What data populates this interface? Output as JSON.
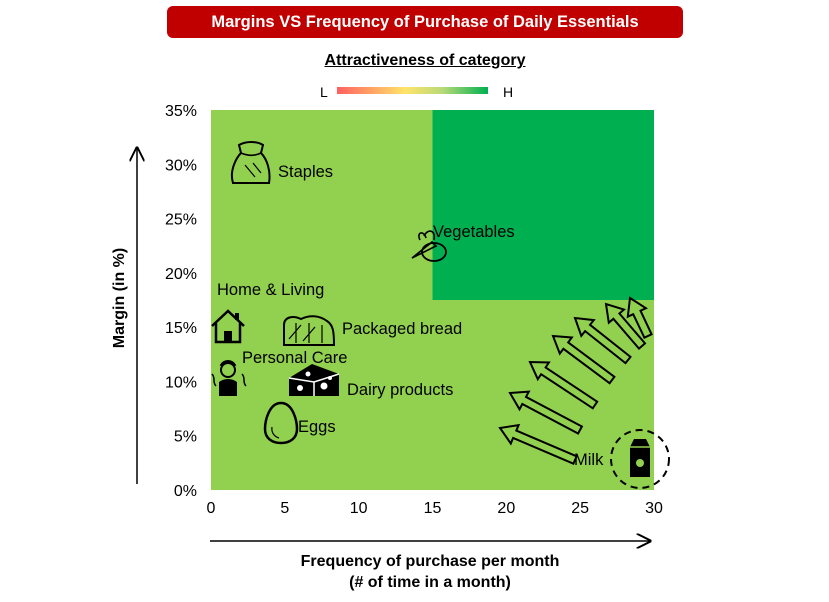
{
  "title": "Margins VS Frequency of Purchase of Daily Essentials",
  "legend": {
    "title": "Attractiveness of category",
    "low": "L",
    "high": "H",
    "colors": {
      "low": "#ff6060",
      "mid": "#ffe46a",
      "high": "#00b050"
    }
  },
  "colors": {
    "background_region": "#92d050",
    "attractive_region": "#00b050",
    "title_bg": "#c00000"
  },
  "icons": [
    "sack-icon",
    "vegetables-icon",
    "house-icon",
    "bread-icon",
    "person-icon",
    "cheese-icon",
    "egg-icon",
    "milk-carton-icon",
    "arrow-icon"
  ],
  "xlabel_line1": "Frequency of purchase per month",
  "xlabel_line2": "(# of time in a month)",
  "ylabel": "Margin (in %)",
  "chart_data": {
    "type": "scatter",
    "xlim": [
      0,
      30
    ],
    "ylim": [
      0,
      35
    ],
    "x_ticks": [
      0,
      5,
      10,
      15,
      20,
      25,
      30
    ],
    "x_tick_labels": [
      "0",
      "5",
      "10",
      "15",
      "20",
      "25",
      "30"
    ],
    "y_ticks": [
      0,
      5,
      10,
      15,
      20,
      25,
      30,
      35
    ],
    "y_tick_labels": [
      "0%",
      "5%",
      "10%",
      "15%",
      "20%",
      "25%",
      "30%",
      "35%"
    ],
    "highlight_region": {
      "x": [
        15,
        30
      ],
      "y": [
        17.5,
        35
      ]
    },
    "points": [
      {
        "label": "Staples",
        "x": 2,
        "y": 30
      },
      {
        "label": "Vegetables",
        "x": 14,
        "y": 22.5
      },
      {
        "label": "Home & Living",
        "x": 1,
        "y": 15
      },
      {
        "label": "Packaged bread",
        "x": 6.5,
        "y": 15
      },
      {
        "label": "Personal Care",
        "x": 1,
        "y": 10
      },
      {
        "label": "Dairy products",
        "x": 7,
        "y": 10
      },
      {
        "label": "Eggs",
        "x": 4.5,
        "y": 6
      },
      {
        "label": "Milk",
        "x": 29,
        "y": 2.5
      }
    ]
  }
}
